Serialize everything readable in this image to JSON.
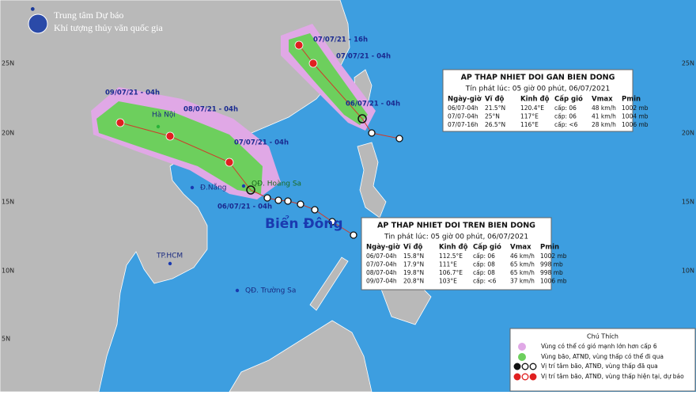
{
  "header": {
    "org": "Trung tâm Dự báo",
    "subtitle": "Khí tượng thủy văn quốc gia"
  },
  "lat_labels": [
    "25N",
    "20N",
    "15N",
    "10N",
    "5N"
  ],
  "places": [
    "Hà Nội",
    "Đ.Nẵng",
    "QĐ. Hoàng Sa",
    "TP.HCM",
    "QĐ. Trường Sa"
  ],
  "sea_label": "Biển Đông",
  "track_labels": [
    "07/07/21 - 16h",
    "07/07/21 - 04h",
    "06/07/21 - 04h",
    "09/07/21 - 04h",
    "08/07/21 - 04h",
    "07/07/21 - 04h",
    "06/07/21 - 04h"
  ],
  "bulletins": [
    {
      "title": "AP THAP NHIET DOI GAN BIEN DONG",
      "issued": "Tín phát lúc: 05 giờ 00 phút, 06/07/2021",
      "columns": [
        "Ngày-giờ",
        "Vĩ độ",
        "Kinh độ",
        "Cấp gió",
        "Vmax",
        "Pmin"
      ],
      "rows": [
        [
          "06/07-04h",
          "21.5°N",
          "120.4°E",
          "cấp: 06",
          "48 km/h",
          "1002 mb"
        ],
        [
          "07/07-04h",
          "25°N",
          "117°E",
          "cấp: 06",
          "41 km/h",
          "1004 mb"
        ],
        [
          "07/07-16h",
          "26.5°N",
          "116°E",
          "cấp: <6",
          "28 km/h",
          "1006 mb"
        ]
      ]
    },
    {
      "title": "AP THAP NHIET DOI TREN BIEN DONG",
      "issued": "Tin phát lúc: 05 giờ 00 phút, 06/07/2021",
      "columns": [
        "Ngày-giờ",
        "Vĩ độ",
        "Kinh độ",
        "Cấp gió",
        "Vmax",
        "Pmin"
      ],
      "rows": [
        [
          "06/07-04h",
          "15.8°N",
          "112.5°E",
          "cấp: 06",
          "46 km/h",
          "1002 mb"
        ],
        [
          "07/07-04h",
          "17.9°N",
          "111°E",
          "cấp: 08",
          "65 km/h",
          "998 mb"
        ],
        [
          "08/07-04h",
          "19.8°N",
          "106.7°E",
          "cấp: 08",
          "65 km/h",
          "998 mb"
        ],
        [
          "09/07-04h",
          "20.8°N",
          "103°E",
          "cấp: <6",
          "37 km/h",
          "1006 mb"
        ]
      ]
    }
  ],
  "legend": {
    "title": "Chú Thích",
    "items": [
      "Vùng có thể có gió mạnh lớn hơn cấp 6",
      "Vùng bão, ATNĐ, vùng thấp có thể đi qua",
      "Vị trí tâm bão, ATNĐ, vùng thấp đã qua",
      "Vị trí tâm bão, ATNĐ, vùng thấp hiện tại, dự báo"
    ]
  }
}
